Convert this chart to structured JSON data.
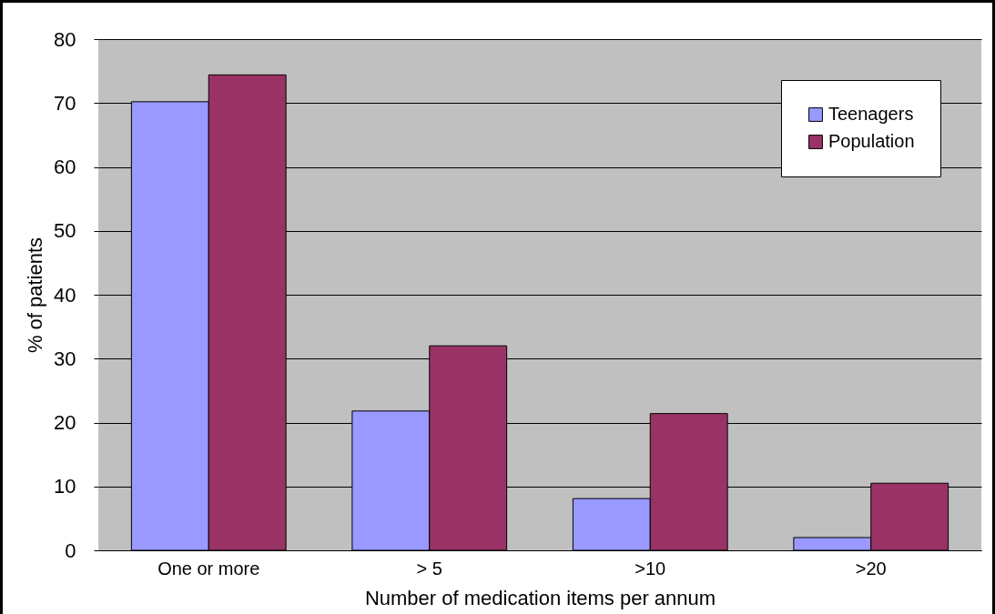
{
  "chart_data": {
    "type": "bar",
    "xlabel": "Number of medication items per annum",
    "ylabel": "% of patients",
    "categories": [
      "One or more",
      "> 5",
      ">10",
      ">20"
    ],
    "series": [
      {
        "name": "Teenagers",
        "color": "#9999ff",
        "values": [
          70.2,
          21.8,
          8.1,
          2.0
        ]
      },
      {
        "name": "Population",
        "color": "#993366",
        "values": [
          74.4,
          32.0,
          21.4,
          10.5
        ]
      }
    ],
    "ylim": [
      0,
      80
    ],
    "yticks": [
      0,
      10,
      20,
      30,
      40,
      50,
      60,
      70,
      80
    ],
    "grid": "y",
    "legend": "top right"
  }
}
